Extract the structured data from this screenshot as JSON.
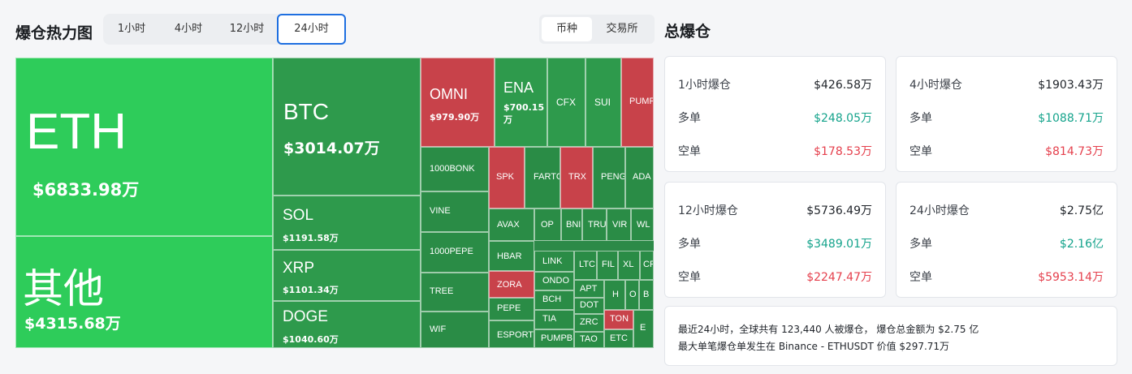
{
  "heatmap": {
    "title": "爆仓热力图",
    "time_tabs": [
      "1小时",
      "4小时",
      "12小时",
      "24小时"
    ],
    "active_time_tab": "24小时",
    "view_tabs": [
      "币种",
      "交易所"
    ],
    "active_view_tab": "币种",
    "tiles": [
      {
        "name": "ETH",
        "value": "$6833.98万",
        "side": "long"
      },
      {
        "name": "其他",
        "value": "$4315.68万",
        "side": "long"
      },
      {
        "name": "BTC",
        "value": "$3014.07万",
        "side": "long"
      },
      {
        "name": "SOL",
        "value": "$1191.58万",
        "side": "long"
      },
      {
        "name": "XRP",
        "value": "$1101.34万",
        "side": "long"
      },
      {
        "name": "DOGE",
        "value": "$1040.60万",
        "side": "long"
      },
      {
        "name": "OMNI",
        "value": "$979.90万",
        "side": "short"
      },
      {
        "name": "ENA",
        "value": "$700.15万",
        "side": "long"
      },
      {
        "name": "CFX",
        "value": "",
        "side": "long"
      },
      {
        "name": "SUI",
        "value": "",
        "side": "long"
      },
      {
        "name": "PUMP",
        "value": "",
        "side": "short"
      },
      {
        "name": "1000BONK",
        "value": "",
        "side": "long"
      },
      {
        "name": "SPK",
        "value": "",
        "side": "short"
      },
      {
        "name": "FARTC",
        "value": "",
        "side": "long"
      },
      {
        "name": "TRX",
        "value": "",
        "side": "short"
      },
      {
        "name": "PENG",
        "value": "",
        "side": "long"
      },
      {
        "name": "ADA",
        "value": "",
        "side": "long"
      },
      {
        "name": "VINE",
        "value": "",
        "side": "long"
      },
      {
        "name": "AVAX",
        "value": "",
        "side": "long"
      },
      {
        "name": "OP",
        "value": "",
        "side": "long"
      },
      {
        "name": "BNI",
        "value": "",
        "side": "long"
      },
      {
        "name": "TRU",
        "value": "",
        "side": "long"
      },
      {
        "name": "VIR",
        "value": "",
        "side": "long"
      },
      {
        "name": "WL",
        "value": "",
        "side": "long"
      },
      {
        "name": "1000PEPE",
        "value": "",
        "side": "long"
      },
      {
        "name": "HBAR",
        "value": "",
        "side": "long"
      },
      {
        "name": "LINK",
        "value": "",
        "side": "long"
      },
      {
        "name": "LTC",
        "value": "",
        "side": "long"
      },
      {
        "name": "FIL",
        "value": "",
        "side": "long"
      },
      {
        "name": "XL",
        "value": "",
        "side": "long"
      },
      {
        "name": "CR",
        "value": "",
        "side": "long"
      },
      {
        "name": "ZORA",
        "value": "",
        "side": "short"
      },
      {
        "name": "ONDO",
        "value": "",
        "side": "long"
      },
      {
        "name": "APT",
        "value": "",
        "side": "long"
      },
      {
        "name": "H",
        "value": "",
        "side": "long"
      },
      {
        "name": "O",
        "value": "",
        "side": "long"
      },
      {
        "name": "B",
        "value": "",
        "side": "long"
      },
      {
        "name": "TREE",
        "value": "",
        "side": "long"
      },
      {
        "name": "PEPE",
        "value": "",
        "side": "long"
      },
      {
        "name": "BCH",
        "value": "",
        "side": "long"
      },
      {
        "name": "DOT",
        "value": "",
        "side": "long"
      },
      {
        "name": "TIA",
        "value": "",
        "side": "long"
      },
      {
        "name": "ZRC",
        "value": "",
        "side": "long"
      },
      {
        "name": "TON",
        "value": "",
        "side": "short"
      },
      {
        "name": "WIF",
        "value": "",
        "side": "long"
      },
      {
        "name": "ESPORTS",
        "value": "",
        "side": "long"
      },
      {
        "name": "PUMPB",
        "value": "",
        "side": "long"
      },
      {
        "name": "TAO",
        "value": "",
        "side": "long"
      },
      {
        "name": "ETC",
        "value": "",
        "side": "long"
      },
      {
        "name": "E",
        "value": "",
        "side": "long"
      }
    ]
  },
  "totals": {
    "title": "总爆仓",
    "cards": [
      {
        "period": "1小时爆仓",
        "total": "$426.58万",
        "long_label": "多单",
        "long_value": "$248.05万",
        "short_label": "空单",
        "short_value": "$178.53万"
      },
      {
        "period": "4小时爆仓",
        "total": "$1903.43万",
        "long_label": "多单",
        "long_value": "$1088.71万",
        "short_label": "空单",
        "short_value": "$814.73万"
      },
      {
        "period": "12小时爆仓",
        "total": "$5736.49万",
        "long_label": "多单",
        "long_value": "$3489.01万",
        "short_label": "空单",
        "short_value": "$2247.47万"
      },
      {
        "period": "24小时爆仓",
        "total": "$2.75亿",
        "long_label": "多单",
        "long_value": "$2.16亿",
        "short_label": "空单",
        "short_value": "$5953.14万"
      }
    ],
    "summary_line1": "最近24小时，全球共有 123,440 人被爆仓， 爆仓总金额为 $2.75 亿",
    "summary_line2": "最大单笔爆仓单发生在 Binance - ETHUSDT 价值 $297.71万"
  },
  "colors": {
    "long_text": "#14a38b",
    "short_text": "#e5404d",
    "accent": "#1e6fe0",
    "short_tile": "#c8424a",
    "long_tile": "#2e9a4c"
  }
}
